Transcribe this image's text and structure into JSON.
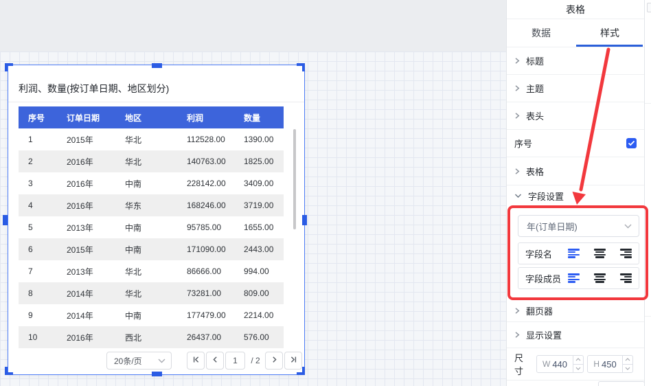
{
  "colors": {
    "accent": "#2c5cf2",
    "table_header_bg": "#3d64db",
    "annotation": "#f2383d",
    "selection": "#2b5ce4"
  },
  "canvas": {
    "widget": {
      "title": "利润、数量(按订单日期、地区划分)",
      "table": {
        "headers": [
          "序号",
          "订单日期",
          "地区",
          "利润",
          "数量"
        ],
        "rows": [
          [
            "1",
            "2015年",
            "华北",
            "112528.00",
            "1390.00"
          ],
          [
            "2",
            "2016年",
            "华北",
            "140763.00",
            "1825.00"
          ],
          [
            "3",
            "2016年",
            "中南",
            "228142.00",
            "3409.00"
          ],
          [
            "4",
            "2016年",
            "华东",
            "168246.00",
            "3719.00"
          ],
          [
            "5",
            "2013年",
            "中南",
            "95785.00",
            "1655.00"
          ],
          [
            "6",
            "2015年",
            "中南",
            "171090.00",
            "2443.00"
          ],
          [
            "7",
            "2013年",
            "华北",
            "86666.00",
            "994.00"
          ],
          [
            "8",
            "2014年",
            "华北",
            "73281.00",
            "809.00"
          ],
          [
            "9",
            "2014年",
            "中南",
            "177479.00",
            "2214.00"
          ],
          [
            "10",
            "2016年",
            "西北",
            "26437.00",
            "576.00"
          ]
        ]
      },
      "pagination": {
        "page_size": "20条/页",
        "current_page": "1",
        "total_pages": "/ 2"
      }
    }
  },
  "panel": {
    "title": "表格",
    "tabs": [
      {
        "label": "数据",
        "active": false
      },
      {
        "label": "样式",
        "active": true
      }
    ],
    "sections": [
      {
        "label": "标题"
      },
      {
        "label": "主题"
      },
      {
        "label": "表头"
      },
      {
        "label": "序号",
        "checkbox": true,
        "checked": true
      },
      {
        "label": "表格"
      },
      {
        "label": "字段设置",
        "expanded": true
      },
      {
        "label": "翻页器"
      },
      {
        "label": "显示设置"
      }
    ],
    "field_settings": {
      "selected_field": "年(订单日期)",
      "field_rows": [
        {
          "label": "字段名",
          "active_align": "left"
        },
        {
          "label": "字段成员",
          "active_align": "left"
        }
      ]
    },
    "size": {
      "label": "尺寸",
      "w_prefix": "W",
      "w_value": "440",
      "h_prefix": "H",
      "h_value": "450"
    }
  },
  "icons": {
    "chevron_right": "collapsed section arrow",
    "chevron_down": "expanded section / select arrow",
    "check": "checkbox checkmark",
    "first_page": "|<",
    "prev_page": "<",
    "next_page": ">",
    "last_page": ">|",
    "align_left": "align-left lines",
    "align_center": "align-center lines",
    "align_right": "align-right lines",
    "red_arrow": "annotation arrow pointing to field settings"
  }
}
